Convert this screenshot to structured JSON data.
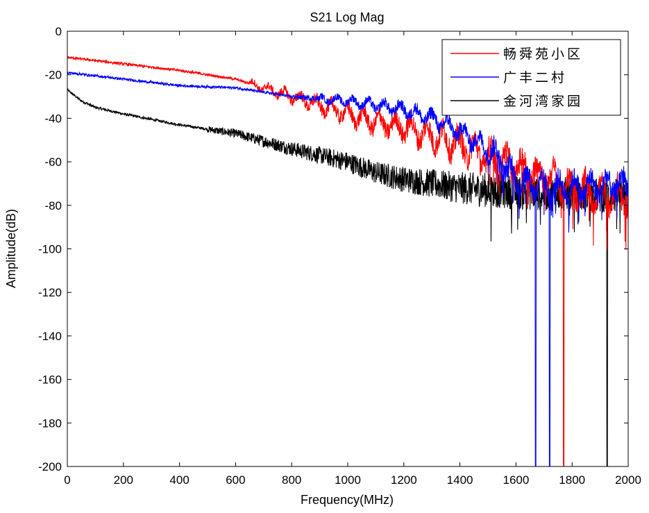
{
  "chart_data": {
    "type": "line",
    "title": "S21 Log Mag",
    "xlabel": "Frequency(MHz)",
    "ylabel": "Amplitude(dB)",
    "xlim": [
      0,
      2000
    ],
    "ylim": [
      -200,
      0
    ],
    "xticks": [
      0,
      200,
      400,
      600,
      800,
      1000,
      1200,
      1400,
      1600,
      1800,
      2000
    ],
    "yticks": [
      0,
      -20,
      -40,
      -60,
      -80,
      -100,
      -120,
      -140,
      -160,
      -180,
      -200
    ],
    "grid": false,
    "legend_position": "top-right",
    "series": [
      {
        "name": "畅舜苑小区",
        "color": "#ff0000",
        "trend": [
          [
            0,
            -12
          ],
          [
            200,
            -15
          ],
          [
            400,
            -18
          ],
          [
            600,
            -22
          ],
          [
            700,
            -26
          ],
          [
            800,
            -30
          ],
          [
            900,
            -34
          ],
          [
            1000,
            -38
          ],
          [
            1100,
            -42
          ],
          [
            1200,
            -44
          ],
          [
            1300,
            -48
          ],
          [
            1400,
            -52
          ],
          [
            1500,
            -58
          ],
          [
            1600,
            -62
          ],
          [
            1700,
            -66
          ],
          [
            1800,
            -72
          ],
          [
            1900,
            -75
          ],
          [
            2000,
            -76
          ]
        ],
        "deep_notches": [
          [
            1770,
            -200
          ]
        ]
      },
      {
        "name": "广丰二村",
        "color": "#0000ff",
        "trend": [
          [
            0,
            -19
          ],
          [
            200,
            -22
          ],
          [
            400,
            -25
          ],
          [
            600,
            -26
          ],
          [
            800,
            -30
          ],
          [
            1000,
            -32
          ],
          [
            1200,
            -36
          ],
          [
            1300,
            -40
          ],
          [
            1400,
            -46
          ],
          [
            1500,
            -54
          ],
          [
            1550,
            -60
          ],
          [
            1600,
            -68
          ],
          [
            1700,
            -72
          ],
          [
            1800,
            -72
          ],
          [
            1900,
            -71
          ],
          [
            2000,
            -70
          ]
        ],
        "deep_notches": [
          [
            1670,
            -200
          ],
          [
            1720,
            -200
          ]
        ]
      },
      {
        "name": "金河湾家园",
        "color": "#000000",
        "trend": [
          [
            0,
            -27
          ],
          [
            50,
            -32
          ],
          [
            100,
            -35
          ],
          [
            200,
            -38
          ],
          [
            400,
            -43
          ],
          [
            600,
            -47
          ],
          [
            800,
            -54
          ],
          [
            1000,
            -60
          ],
          [
            1100,
            -65
          ],
          [
            1200,
            -68
          ],
          [
            1400,
            -72
          ],
          [
            1600,
            -74
          ],
          [
            1800,
            -75
          ],
          [
            2000,
            -76
          ]
        ],
        "deep_notches": [
          [
            1925,
            -200
          ]
        ]
      }
    ]
  }
}
